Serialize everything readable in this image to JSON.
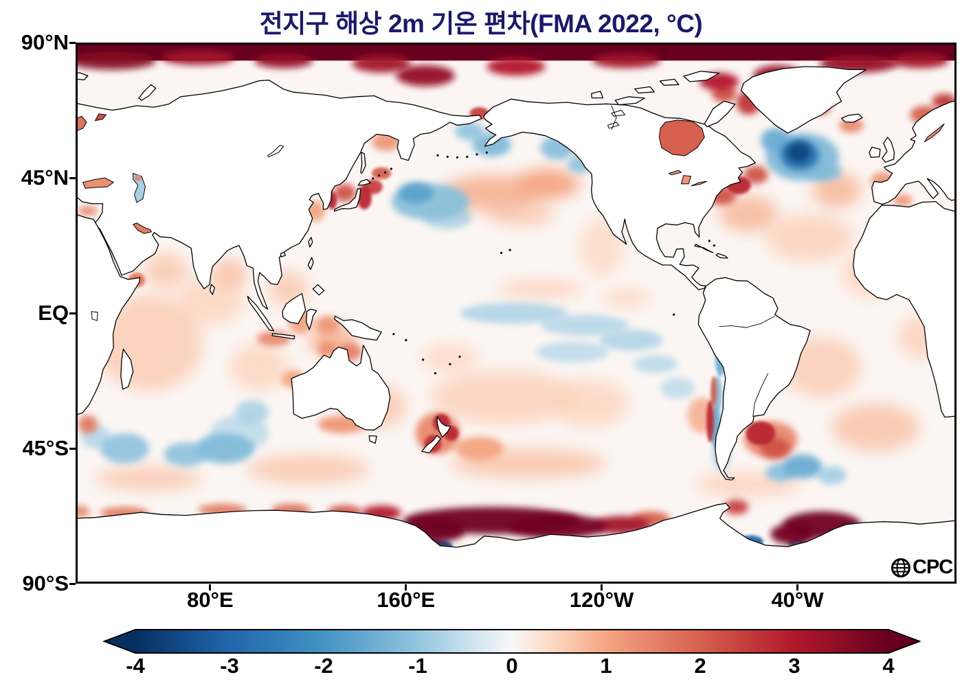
{
  "title": "전지구 해상 2m 기온 편차(FMA 2022, °C)",
  "logo_text": "CPC",
  "y_axis": {
    "labels": [
      "90°N",
      "45°N",
      "EQ",
      "45°S",
      "90°S"
    ],
    "lats": [
      90,
      45,
      0,
      -45,
      -90
    ]
  },
  "x_axis": {
    "labels": [
      "80°E",
      "160°E",
      "120°W",
      "40°W"
    ],
    "lons": [
      80,
      160,
      240,
      320
    ]
  },
  "colorbar": {
    "min": -4,
    "max": 4,
    "tick_labels": [
      "-4",
      "-3",
      "-2",
      "-1",
      "0",
      "1",
      "2",
      "3",
      "4"
    ]
  },
  "lakes": {
    "hudson_bay": 2.0,
    "black_sea": 1.3,
    "caspian": -0.8,
    "caspian_north": 1.5,
    "great_lakes": 1.2,
    "baltic": 1.7,
    "baltic_right": 1.5,
    "white_sea": 2.2,
    "persian_gulf": 1.6
  },
  "chart_data": {
    "type": "heatmap",
    "title": "전지구 해상 2m 기온 편차(FMA 2022, °C)",
    "variable": "marine 2m air temperature anomaly",
    "period": "FMA 2022",
    "units": "°C",
    "lat_ticks": [
      "90°N",
      "45°N",
      "EQ",
      "45°S",
      "90°S"
    ],
    "lon_ticks": [
      "80°E",
      "160°E",
      "120°W",
      "40°W"
    ],
    "lon_range_east": [
      25,
      385
    ],
    "lat_range": [
      -90,
      90
    ],
    "colorbar_range": [
      -4,
      4
    ],
    "colorbar_extend": "both",
    "colormap_stops": [
      [
        -4,
        "#053061"
      ],
      [
        -3,
        "#2166ac"
      ],
      [
        -2,
        "#4393c3"
      ],
      [
        -1,
        "#92c5de"
      ],
      [
        -0.4,
        "#d1e5f0"
      ],
      [
        0,
        "#f7f7f7"
      ],
      [
        0.4,
        "#fddbc7"
      ],
      [
        1,
        "#f4a582"
      ],
      [
        2,
        "#d6604d"
      ],
      [
        3,
        "#b2182b"
      ],
      [
        4,
        "#67001f"
      ]
    ],
    "ocean_background_value": 0.1,
    "arctic_band": {
      "lat_from": 84,
      "lat_to": 90,
      "value": 4
    },
    "anomaly_fields": "[lon_east_25_385, lat, rx_deg, ry_deg, value_degC, blur_level_0_2]",
    "anomalies": [
      [
        55,
        -10,
        22,
        16,
        0.55,
        2
      ],
      [
        80,
        4,
        14,
        8,
        0.45,
        2
      ],
      [
        62,
        14,
        9,
        6,
        0.6,
        2
      ],
      [
        88,
        13,
        7,
        5,
        0.7,
        2
      ],
      [
        100,
        -18,
        12,
        8,
        0.45,
        2
      ],
      [
        150,
        -31,
        10,
        7,
        0.6,
        2
      ],
      [
        200,
        -28,
        30,
        9,
        0.5,
        2
      ],
      [
        235,
        -30,
        16,
        8,
        0.45,
        2
      ],
      [
        210,
        -50,
        32,
        5,
        0.65,
        2
      ],
      [
        120,
        -52,
        25,
        5,
        0.6,
        2
      ],
      [
        55,
        -55,
        22,
        4,
        0.6,
        2
      ],
      [
        330,
        -18,
        16,
        10,
        0.55,
        2
      ],
      [
        352,
        -38,
        18,
        8,
        0.65,
        2
      ],
      [
        300,
        -57,
        22,
        4,
        0.5,
        2
      ],
      [
        325,
        25,
        18,
        8,
        0.5,
        2
      ],
      [
        350,
        13,
        12,
        8,
        0.45,
        2
      ],
      [
        195,
        40,
        20,
        6,
        0.9,
        2
      ],
      [
        218,
        43,
        13,
        5,
        1.0,
        2
      ],
      [
        240,
        22,
        9,
        10,
        0.4,
        2
      ],
      [
        300,
        33,
        12,
        6,
        0.8,
        2
      ],
      [
        336,
        41,
        10,
        6,
        0.8,
        2
      ],
      [
        370,
        -8,
        9,
        7,
        0.5,
        2
      ],
      [
        112,
        8,
        8,
        6,
        0.6,
        2
      ],
      [
        130,
        -9,
        10,
        5,
        0.9,
        2
      ],
      [
        215,
        8,
        18,
        3,
        0.5,
        2
      ],
      [
        250,
        5,
        10,
        3,
        0.45,
        2
      ],
      [
        178,
        -15,
        12,
        5,
        0.4,
        2
      ],
      [
        305,
        -10,
        10,
        7,
        0.5,
        2
      ],
      [
        375,
        25,
        8,
        8,
        0.5,
        2
      ],
      [
        207,
        33,
        14,
        4,
        0.6,
        2
      ],
      [
        258,
        35,
        8,
        5,
        0.5,
        2
      ],
      [
        322,
        52,
        15,
        8,
        -1.2,
        1
      ],
      [
        321,
        52.5,
        8,
        5,
        -2.6,
        1
      ],
      [
        320.5,
        53.5,
        5,
        3.5,
        -3.6,
        1
      ],
      [
        311,
        57.5,
        6,
        4,
        -1.5,
        1
      ],
      [
        331,
        47,
        7,
        3,
        -1.2,
        1
      ],
      [
        170,
        37,
        16,
        6,
        -1.1,
        1
      ],
      [
        164,
        40,
        7,
        3.5,
        -1.7,
        1
      ],
      [
        177,
        32,
        10,
        4,
        -0.8,
        1
      ],
      [
        195,
        56,
        8,
        4,
        -1.2,
        1
      ],
      [
        186,
        60.5,
        6,
        3,
        -1.0,
        1
      ],
      [
        222,
        55,
        7,
        4,
        -1.1,
        1
      ],
      [
        231,
        49.5,
        5,
        3,
        -1.0,
        1
      ],
      [
        204,
        0,
        22,
        3.5,
        -0.75,
        1
      ],
      [
        233,
        -4,
        18,
        3.5,
        -0.7,
        1
      ],
      [
        252,
        -9,
        13,
        3.5,
        -0.75,
        1
      ],
      [
        228,
        -13,
        15,
        3.5,
        -0.6,
        1
      ],
      [
        262,
        -17,
        9,
        3,
        -0.65,
        1
      ],
      [
        271,
        -25,
        7,
        3.5,
        -0.6,
        1
      ],
      [
        288.5,
        -15,
        2.2,
        6,
        -1.4,
        0
      ],
      [
        287.2,
        -27,
        2,
        6,
        -1.1,
        0
      ],
      [
        286.6,
        -38,
        2.2,
        7,
        -1.4,
        0
      ],
      [
        289,
        -47,
        3,
        5,
        -1.1,
        1
      ],
      [
        284.3,
        -36,
        1.5,
        7,
        2.8,
        0
      ],
      [
        285.8,
        -26,
        1.2,
        5,
        2.0,
        0
      ],
      [
        281,
        -34,
        6,
        6,
        0.9,
        1
      ],
      [
        174.5,
        -36.5,
        3.5,
        3,
        2.8,
        0
      ],
      [
        171,
        -43.5,
        3.5,
        3,
        2.6,
        0
      ],
      [
        178.5,
        -40,
        3,
        2.5,
        2.8,
        0
      ],
      [
        173,
        -40,
        9,
        7,
        1.4,
        1
      ],
      [
        190,
        -45,
        10,
        4,
        1.0,
        1
      ],
      [
        143,
        38.5,
        3,
        4,
        2.8,
        0
      ],
      [
        146.5,
        42,
        4,
        2.5,
        2.4,
        0
      ],
      [
        135,
        40,
        4.5,
        3,
        2.2,
        1
      ],
      [
        129.8,
        37.5,
        2,
        3,
        2.8,
        0
      ],
      [
        123,
        34,
        4,
        3.5,
        1.0,
        1
      ],
      [
        150,
        46.5,
        4,
        2,
        2.0,
        0
      ],
      [
        152,
        57,
        6,
        3,
        1.2,
        1
      ],
      [
        190,
        66.5,
        4,
        2,
        2.4,
        0
      ],
      [
        305,
        -40,
        6,
        4,
        2.8,
        0
      ],
      [
        311,
        -45,
        6,
        3.5,
        2.2,
        1
      ],
      [
        309,
        -42,
        11,
        6,
        1.4,
        1
      ],
      [
        322,
        -51,
        8,
        4,
        -1.5,
        1
      ],
      [
        313,
        -53,
        6,
        3,
        -1.1,
        1
      ],
      [
        334,
        -54,
        6,
        3,
        -0.9,
        1
      ],
      [
        97,
        -33,
        7,
        4,
        -0.8,
        1
      ],
      [
        86,
        -45,
        12,
        5,
        -1.2,
        1
      ],
      [
        70,
        -47,
        9,
        4,
        -1.0,
        1
      ],
      [
        92,
        -40,
        12,
        6,
        -0.6,
        1
      ],
      [
        45,
        -45,
        10,
        5,
        -1.0,
        1
      ],
      [
        33,
        -41,
        6,
        4,
        -0.7,
        1
      ],
      [
        30,
        -37,
        4,
        3,
        1.6,
        1
      ],
      [
        50,
        11,
        3.5,
        2.5,
        1.6,
        0
      ],
      [
        51.5,
        27.5,
        3,
        2,
        1.6,
        1
      ],
      [
        38,
        22,
        2,
        5,
        1.0,
        1
      ],
      [
        106,
        -8.5,
        7,
        2.5,
        1.4,
        1
      ],
      [
        117,
        -3,
        5,
        4,
        1.0,
        1
      ],
      [
        128,
        -4,
        5,
        3,
        1.2,
        1
      ],
      [
        137,
        -13,
        5,
        3,
        1.5,
        1
      ],
      [
        128,
        -12,
        4,
        2.5,
        1.3,
        1
      ],
      [
        134,
        -37,
        10,
        3,
        1.2,
        1
      ],
      [
        114,
        -22,
        5,
        3,
        1.0,
        1
      ],
      [
        289,
        39,
        6,
        3,
        2.2,
        1
      ],
      [
        296,
        42.5,
        5,
        3,
        2.8,
        0
      ],
      [
        303,
        46,
        5,
        3,
        2.2,
        1
      ],
      [
        300,
        70,
        5,
        4,
        2.6,
        1
      ],
      [
        290,
        73,
        5,
        3,
        2.2,
        1
      ],
      [
        330,
        70,
        4,
        4,
        2.0,
        1
      ],
      [
        342,
        62.5,
        5,
        2.5,
        1.4,
        1
      ],
      [
        372,
        66,
        6,
        3,
        2.0,
        1
      ],
      [
        380,
        70.5,
        5,
        2.5,
        2.6,
        1
      ],
      [
        355,
        44,
        5,
        3,
        1.2,
        1
      ],
      [
        363,
        37.5,
        4,
        2,
        1.2,
        1
      ],
      [
        30,
        34,
        4,
        1.5,
        1.5,
        1
      ],
      [
        36,
        65,
        3,
        1.5,
        2.6,
        0
      ],
      [
        27.5,
        63,
        2.5,
        3,
        2.0,
        1
      ],
      [
        277,
        57,
        4,
        3,
        2.8,
        1
      ],
      [
        270,
        60,
        5,
        3,
        1.8,
        1
      ],
      [
        40,
        84,
        18,
        3,
        3.6,
        1
      ],
      [
        75,
        85,
        15,
        2.5,
        3.2,
        1
      ],
      [
        110,
        84,
        12,
        2.5,
        3.4,
        1
      ],
      [
        150,
        83,
        12,
        3,
        3.2,
        1
      ],
      [
        168,
        79,
        12,
        3.5,
        3.4,
        1
      ],
      [
        205,
        82,
        12,
        3,
        3.0,
        1
      ],
      [
        250,
        84,
        14,
        2.5,
        3.2,
        1
      ],
      [
        288,
        77,
        8,
        3,
        3.0,
        1
      ],
      [
        312,
        79,
        10,
        3.5,
        3.4,
        1
      ],
      [
        345,
        83,
        16,
        3,
        3.4,
        1
      ],
      [
        370,
        84,
        12,
        2.5,
        3.2,
        1
      ],
      [
        195,
        -69,
        36,
        4.5,
        3.9,
        1
      ],
      [
        170,
        -72.5,
        14,
        4,
        3.9,
        1
      ],
      [
        222,
        -71,
        20,
        4,
        3.8,
        1
      ],
      [
        248,
        -70.5,
        12,
        3,
        3.2,
        1
      ],
      [
        150,
        -66.5,
        8,
        2.5,
        3.0,
        1
      ],
      [
        172,
        -77.5,
        7,
        2.2,
        -3.4,
        0
      ],
      [
        163,
        -74.5,
        4,
        2,
        -2.0,
        0
      ],
      [
        330,
        -70.5,
        16,
        4.5,
        3.9,
        1
      ],
      [
        318,
        -73.5,
        9,
        3.5,
        3.8,
        1
      ],
      [
        301,
        -76,
        5,
        2,
        -3.0,
        0
      ],
      [
        338,
        -74,
        5,
        2,
        -2.6,
        0
      ],
      [
        320,
        -76.5,
        4,
        1.8,
        -2.2,
        0
      ],
      [
        295,
        -64.5,
        5,
        2.5,
        2.4,
        1
      ],
      [
        260,
        -68.5,
        8,
        2.5,
        2.0,
        1
      ],
      [
        57,
        -69,
        4.5,
        2,
        -3.0,
        0
      ],
      [
        45,
        -66.5,
        10,
        2,
        1.6,
        1
      ],
      [
        85,
        -65.5,
        10,
        2,
        1.6,
        1
      ],
      [
        113,
        -65.5,
        8,
        2,
        1.8,
        1
      ],
      [
        135,
        -66,
        7,
        2,
        2.2,
        1
      ],
      [
        25,
        -66,
        6,
        2,
        1.4,
        1
      ]
    ]
  }
}
